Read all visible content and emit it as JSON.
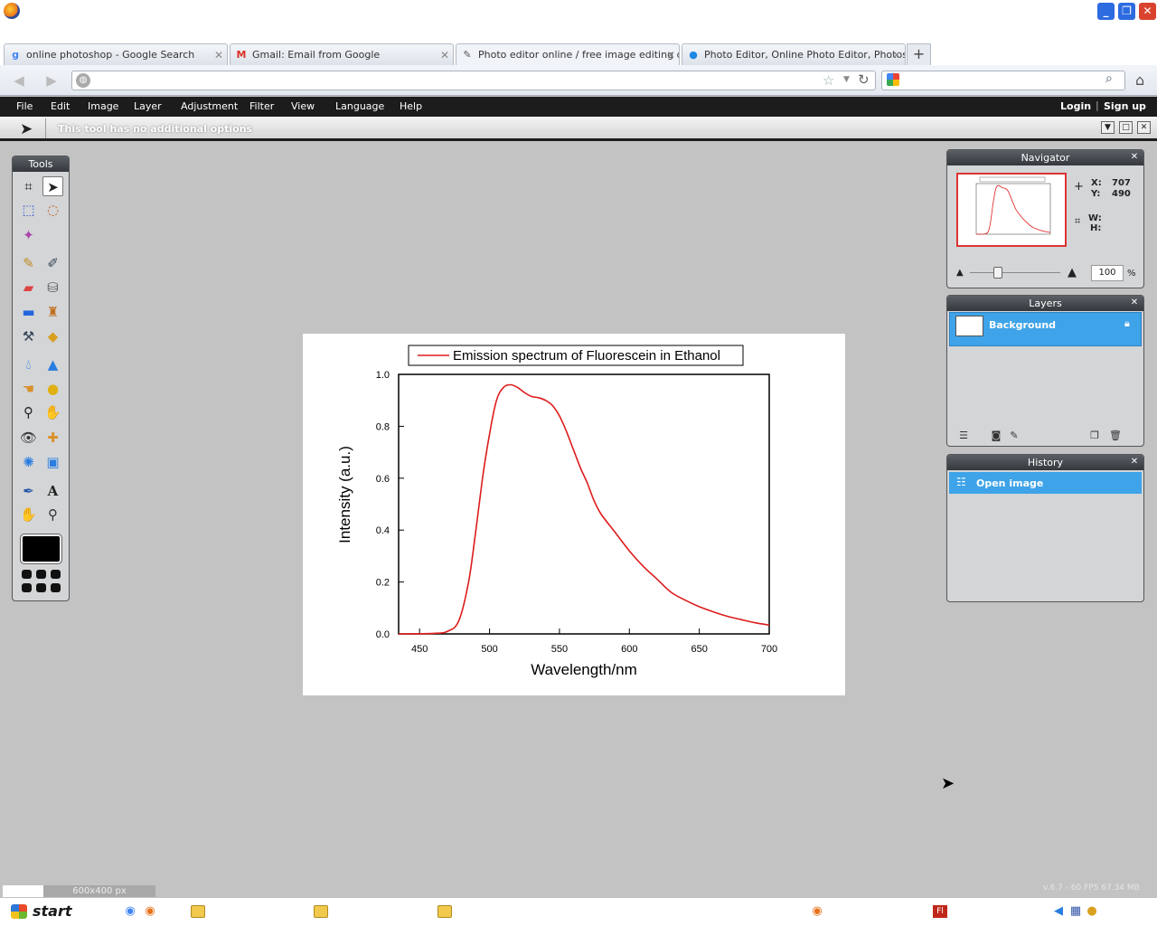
{
  "browser": {
    "tabs": [
      {
        "label": "online photoshop - Google Search",
        "icon": "google-icon"
      },
      {
        "label": "Gmail: Email from Google",
        "icon": "gmail-icon"
      },
      {
        "label": "Photo editor online / free image editing di...",
        "icon": "brush-icon"
      },
      {
        "label": "Photo Editor, Online Photo Editor, Photos...",
        "icon": "bubble-icon"
      }
    ],
    "new_tab": "+",
    "url_placeholder": "",
    "search_placeholder": ""
  },
  "menu": {
    "items": [
      "File",
      "Edit",
      "Image",
      "Layer",
      "Adjustment",
      "Filter",
      "View",
      "Language",
      "Help"
    ],
    "login": "Login",
    "signup": "Sign up",
    "separator": "|"
  },
  "options": {
    "text": "This tool has no additional options"
  },
  "tools_panel": {
    "title": "Tools"
  },
  "navigator": {
    "title": "Navigator",
    "x_label": "X:",
    "x_value": "707",
    "y_label": "Y:",
    "y_value": "490",
    "w_label": "W:",
    "h_label": "H:",
    "zoom_value": "100",
    "zoom_unit": "%"
  },
  "layers": {
    "title": "Layers",
    "items": [
      {
        "name": "Background"
      }
    ]
  },
  "history": {
    "title": "History",
    "items": [
      {
        "name": "Open image"
      }
    ]
  },
  "status": {
    "size": "600x400 px",
    "fps": "v.6.7 - 60 FPS 67.34 MB"
  },
  "taskbar": {
    "start": "start"
  },
  "colors": {
    "accent_blue": "#3ea3e8",
    "menu_bg": "#1c1c1c",
    "curve": "#dd1c1c"
  },
  "chart_data": {
    "type": "line",
    "legend": "Emission spectrum of Fluorescein in Ethanol",
    "xlabel": "Wavelength/nm",
    "ylabel": "Intensity (a.u.)",
    "xlim": [
      435,
      700
    ],
    "ylim": [
      0,
      1.0
    ],
    "xticks": [
      450,
      500,
      550,
      600,
      650,
      700
    ],
    "yticks": [
      "0.0",
      "0.2",
      "0.4",
      "0.6",
      "0.8",
      "1.0"
    ],
    "series": [
      {
        "name": "Emission spectrum of Fluorescein in Ethanol",
        "x": [
          435,
          460,
          470,
          478,
          485,
          490,
          495,
          500,
          505,
          510,
          515,
          520,
          525,
          530,
          535,
          540,
          545,
          550,
          555,
          560,
          565,
          570,
          575,
          580,
          590,
          600,
          610,
          620,
          630,
          640,
          650,
          660,
          670,
          680,
          690,
          700
        ],
        "y": [
          0.0,
          0.002,
          0.01,
          0.05,
          0.2,
          0.39,
          0.6,
          0.77,
          0.9,
          0.95,
          0.96,
          0.95,
          0.93,
          0.915,
          0.91,
          0.9,
          0.88,
          0.84,
          0.78,
          0.71,
          0.64,
          0.58,
          0.51,
          0.46,
          0.39,
          0.32,
          0.26,
          0.21,
          0.16,
          0.13,
          0.105,
          0.085,
          0.068,
          0.055,
          0.043,
          0.034
        ]
      }
    ]
  }
}
